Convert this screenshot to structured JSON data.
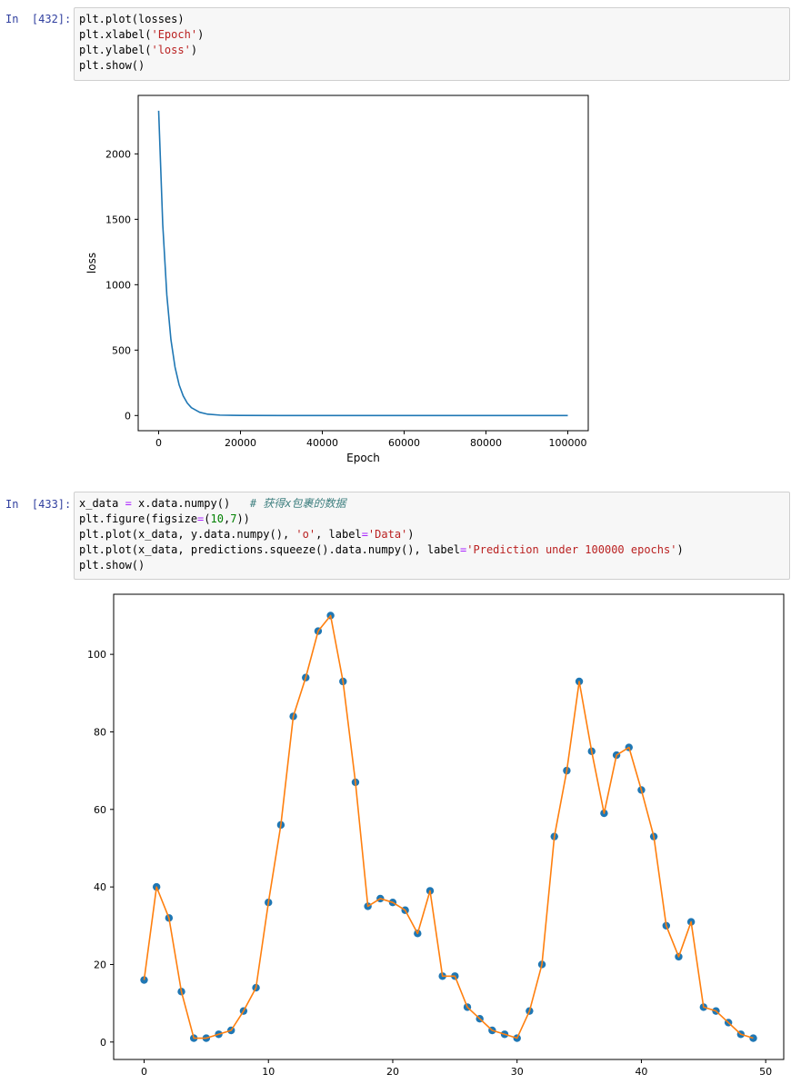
{
  "cells": [
    {
      "prompt": "In  [432]:",
      "code": [
        [
          {
            "t": "plt.plot(losses)"
          }
        ],
        [
          {
            "t": "plt.xlabel("
          },
          {
            "t": "'Epoch'",
            "c": "str"
          },
          {
            "t": ")"
          }
        ],
        [
          {
            "t": "plt.ylabel("
          },
          {
            "t": "'loss'",
            "c": "str"
          },
          {
            "t": ")"
          }
        ],
        [
          {
            "t": "plt.show()"
          }
        ]
      ]
    },
    {
      "prompt": "In  [433]:",
      "code": [
        [
          {
            "t": "x_data "
          },
          {
            "t": "=",
            "c": "op"
          },
          {
            "t": " x.data.numpy()   "
          },
          {
            "t": "# 获得x包裹的数据",
            "c": "cmt"
          }
        ],
        [
          {
            "t": "plt.figure(figsize"
          },
          {
            "t": "=",
            "c": "op"
          },
          {
            "t": "("
          },
          {
            "t": "10",
            "c": "num"
          },
          {
            "t": ","
          },
          {
            "t": "7",
            "c": "num"
          },
          {
            "t": "))"
          }
        ],
        [
          {
            "t": "plt.plot(x_data, y.data.numpy(), "
          },
          {
            "t": "'o'",
            "c": "str"
          },
          {
            "t": ", label"
          },
          {
            "t": "=",
            "c": "op"
          },
          {
            "t": "'Data'",
            "c": "str"
          },
          {
            "t": ")"
          }
        ],
        [
          {
            "t": "plt.plot(x_data, predictions.squeeze().data.numpy(), label"
          },
          {
            "t": "=",
            "c": "op"
          },
          {
            "t": "'Prediction under 100000 epochs'",
            "c": "str"
          },
          {
            "t": ")"
          }
        ],
        [
          {
            "t": "plt.show()"
          }
        ]
      ]
    }
  ],
  "colors": {
    "series1": "#1f77b4",
    "series2": "#ff7f0e"
  },
  "chart_data": [
    {
      "type": "line",
      "xlabel": "Epoch",
      "ylabel": "loss",
      "xlim": [
        -5000,
        105000
      ],
      "ylim": [
        -116,
        2447
      ],
      "xticks": [
        0,
        20000,
        40000,
        60000,
        80000,
        100000
      ],
      "yticks": [
        0,
        500,
        1000,
        1500,
        2000
      ],
      "series": [
        {
          "x": [
            0,
            1000,
            2000,
            3000,
            4000,
            5000,
            6000,
            7000,
            8000,
            10000,
            12000,
            15000,
            20000,
            30000,
            50000,
            100000
          ],
          "values": [
            2330,
            1460,
            920,
            580,
            370,
            235,
            150,
            95,
            60,
            25,
            10,
            3,
            0.5,
            0,
            0,
            0
          ]
        }
      ]
    },
    {
      "type": "line",
      "xlim": [
        -2.45,
        51.45
      ],
      "ylim": [
        -4.5,
        115.5
      ],
      "xticks": [
        0,
        10,
        20,
        30,
        40,
        50
      ],
      "yticks": [
        0,
        20,
        40,
        60,
        80,
        100
      ],
      "series": [
        {
          "style": "markers",
          "values": [
            16,
            40,
            32,
            13,
            1,
            1,
            2,
            3,
            8,
            14,
            36,
            56,
            84,
            94,
            106,
            110,
            93,
            67,
            35,
            37,
            36,
            34,
            28,
            39,
            17,
            17,
            9,
            6,
            3,
            2,
            1,
            8,
            20,
            53,
            70,
            93,
            75,
            59,
            74,
            76,
            65,
            53,
            30,
            22,
            31,
            9,
            8,
            5,
            2,
            1
          ]
        },
        {
          "style": "line",
          "values": [
            16,
            40,
            32,
            13,
            1,
            1,
            2,
            3,
            8,
            14,
            36,
            56,
            84,
            94,
            106,
            110,
            93,
            67,
            35,
            37,
            36,
            34,
            28,
            39,
            17,
            17,
            9,
            6,
            3,
            2,
            1,
            8,
            20,
            53,
            70,
            93,
            75,
            59,
            74,
            76,
            65,
            53,
            30,
            22,
            31,
            9,
            8,
            5,
            2,
            1
          ]
        }
      ]
    }
  ]
}
